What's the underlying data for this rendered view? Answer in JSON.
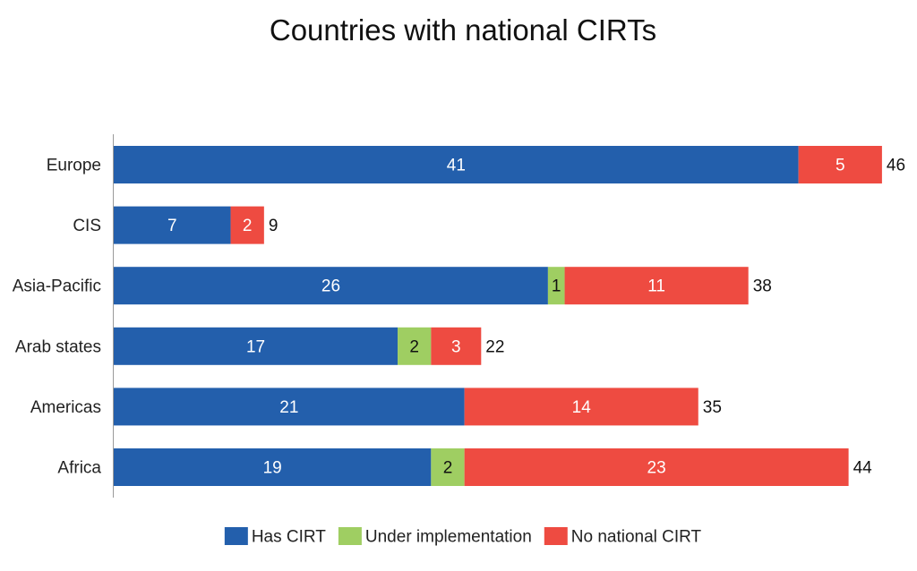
{
  "chart_data": {
    "type": "bar",
    "orientation": "horizontal",
    "stacked": true,
    "title": "Countries with national CIRTs",
    "xlabel": "",
    "ylabel": "",
    "xlim": [
      0,
      46
    ],
    "grid": false,
    "legend_position": "bottom",
    "categories": [
      "Europe",
      "CIS",
      "Asia-Pacific",
      "Arab states",
      "Americas",
      "Africa"
    ],
    "series": [
      {
        "name": "Has CIRT",
        "color": "#235FAC",
        "label_color": "#ffffff",
        "values": [
          41,
          7,
          26,
          17,
          21,
          19
        ]
      },
      {
        "name": "Under implementation",
        "color": "#9FCE62",
        "label_color": "#111111",
        "values": [
          0,
          0,
          1,
          2,
          0,
          2
        ]
      },
      {
        "name": "No national CIRT",
        "color": "#EE4B41",
        "label_color": "#ffffff",
        "values": [
          5,
          2,
          11,
          3,
          14,
          23
        ]
      }
    ],
    "totals": [
      46,
      9,
      38,
      22,
      35,
      44
    ]
  }
}
